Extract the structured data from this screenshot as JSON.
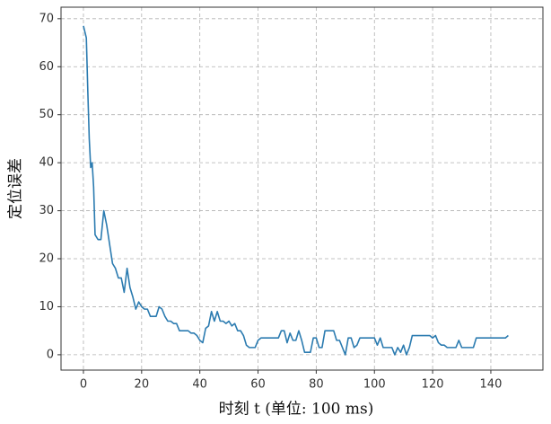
{
  "chart_data": {
    "type": "line",
    "x_label": "时刻 t (单位: 100 ms)",
    "y_label": "定位误差",
    "x": [
      0,
      1,
      1.5,
      2,
      2.5,
      3,
      3.5,
      4,
      5,
      6,
      7,
      8,
      9,
      10,
      11,
      12,
      13,
      14,
      15,
      16,
      17,
      18,
      19,
      20,
      21,
      22,
      23,
      24,
      25,
      26,
      27,
      28,
      29,
      30,
      31,
      32,
      33,
      34,
      36,
      37,
      38,
      39,
      40,
      41,
      42,
      43,
      44,
      45,
      46,
      47,
      48,
      49,
      50,
      51,
      52,
      53,
      54,
      55,
      56,
      57,
      58,
      59,
      60,
      61,
      65,
      67,
      68,
      69,
      70,
      71,
      72,
      73,
      74,
      75,
      76,
      77,
      78,
      79,
      80,
      81,
      82,
      83,
      86,
      87,
      88,
      89,
      90,
      91,
      92,
      93,
      94,
      95,
      100,
      101,
      102,
      103,
      106,
      107,
      108,
      109,
      110,
      111,
      112,
      113,
      119,
      120,
      121,
      122,
      123,
      124,
      125,
      128,
      129,
      130,
      134,
      135,
      144,
      145,
      146
    ],
    "series": [
      {
        "color": "#2b7bb0",
        "values": [
          68.5,
          66,
          55,
          45,
          39,
          40,
          35,
          25,
          24,
          24,
          30,
          27,
          23,
          19,
          18,
          16,
          16,
          13,
          18,
          14,
          12,
          9.5,
          11,
          10,
          9.5,
          9.5,
          8,
          8,
          8,
          10,
          9.5,
          8,
          7,
          7,
          6.5,
          6.5,
          5,
          5,
          5,
          4.5,
          4.5,
          4,
          3,
          2.5,
          5.5,
          6,
          9,
          7,
          9,
          7,
          7,
          6.5,
          7,
          6,
          6.5,
          5,
          5,
          4,
          2,
          1.5,
          1.5,
          1.5,
          3,
          3.5,
          3.5,
          3.5,
          5,
          5,
          2.5,
          4.5,
          3,
          3,
          5,
          3,
          0.5,
          0.5,
          0.5,
          3.5,
          3.5,
          1.5,
          1.5,
          5,
          5,
          3,
          3,
          1.5,
          0,
          3.5,
          3.5,
          1.5,
          2,
          3.5,
          3.5,
          2,
          3.5,
          1.5,
          1.5,
          0,
          1.5,
          0.5,
          2,
          0,
          1.5,
          4,
          4,
          3.5,
          4,
          2.5,
          2,
          2,
          1.5,
          1.5,
          3,
          1.5,
          1.5,
          3.5,
          3.5,
          3.5,
          4
        ]
      }
    ],
    "xlim": [
      -7.7,
      157.9
    ],
    "ylim": [
      -3.2,
      72.4
    ],
    "xticks": [
      0,
      20,
      40,
      60,
      80,
      100,
      120,
      140
    ],
    "yticks": [
      0,
      10,
      20,
      30,
      40,
      50,
      60,
      70
    ],
    "grid": true
  }
}
